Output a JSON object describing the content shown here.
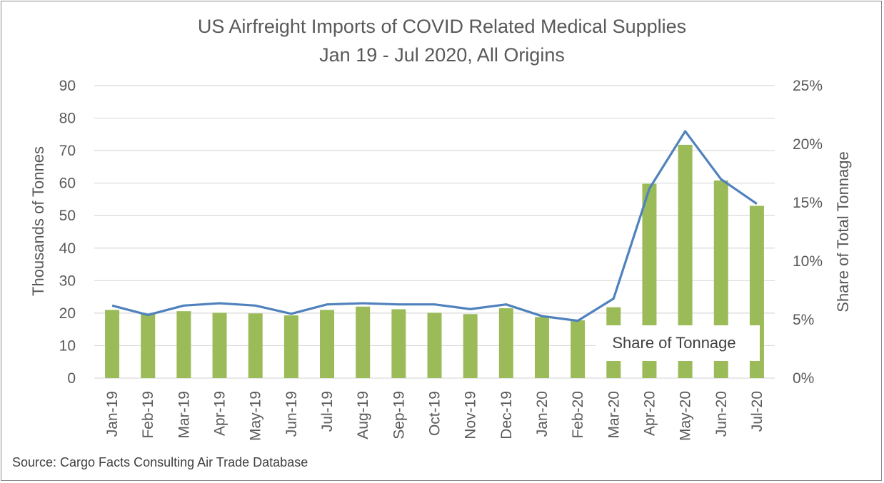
{
  "chart_data": {
    "type": "bar",
    "title": "US Airfreight Imports of COVID Related Medical Supplies",
    "subtitle": "Jan 19 - Jul 2020, All Origins",
    "categories": [
      "Jan-19",
      "Feb-19",
      "Mar-19",
      "Apr-19",
      "May-19",
      "Jun-19",
      "Jul-19",
      "Aug-19",
      "Sep-19",
      "Oct-19",
      "Nov-19",
      "Dec-19",
      "Jan-20",
      "Feb-20",
      "Mar-20",
      "Apr-20",
      "May-20",
      "Jun-20",
      "Jul-20"
    ],
    "series": [
      {
        "type": "bar",
        "axis": "left",
        "color": "#9bbb59",
        "values": [
          21,
          19.8,
          20.6,
          20.1,
          19.9,
          19.3,
          21,
          22,
          21.2,
          20.1,
          19.7,
          21.5,
          18.8,
          17.8,
          21.8,
          59.8,
          71.8,
          60.8,
          53
        ]
      },
      {
        "type": "line",
        "axis": "right",
        "color": "#4f81bd",
        "values": [
          6.2,
          5.4,
          6.2,
          6.4,
          6.2,
          5.5,
          6.3,
          6.4,
          6.3,
          6.3,
          5.9,
          6.3,
          5.3,
          4.9,
          6.8,
          16.2,
          21.1,
          17.0,
          14.9
        ]
      }
    ],
    "ylabel": "Thousands of Tonnes",
    "ylim": [
      0,
      90
    ],
    "yticks": [
      "0",
      "10",
      "20",
      "30",
      "40",
      "50",
      "60",
      "70",
      "80",
      "90"
    ],
    "y2label": "Share of Total Tonnage",
    "y2lim": [
      0,
      25
    ],
    "y2ticks": [
      "0%",
      "5%",
      "10%",
      "15%",
      "20%",
      "25%"
    ],
    "annotation": "Share of Tonnage",
    "grid": true,
    "colors": {
      "bars": "#9bbb59",
      "line": "#4f81bd",
      "grid": "#d9d9d9",
      "text": "#595959"
    }
  },
  "source_note": "Source: Cargo Facts Consulting Air Trade Database"
}
